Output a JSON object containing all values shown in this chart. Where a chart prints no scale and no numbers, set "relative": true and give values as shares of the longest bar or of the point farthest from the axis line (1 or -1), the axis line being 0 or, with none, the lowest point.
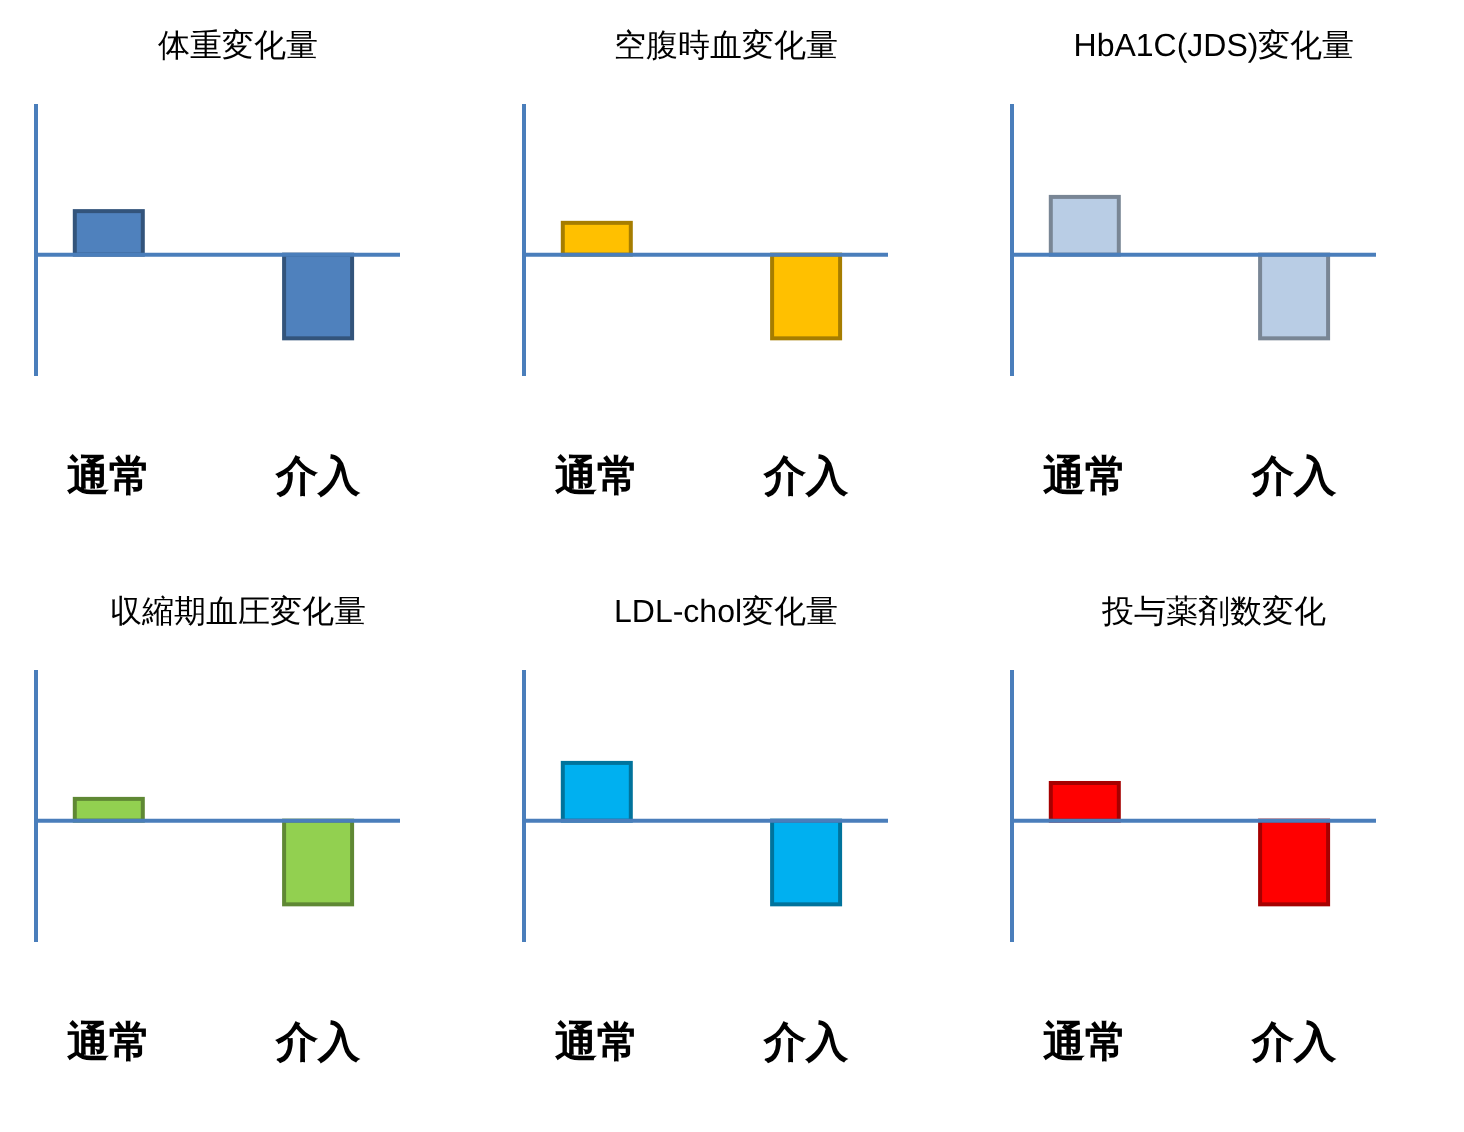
{
  "chart_data": [
    {
      "type": "bar",
      "title": "体重変化量",
      "categories": [
        "通常",
        "介入"
      ],
      "values": [
        0.52,
        -1
      ],
      "color": "#4f81bd",
      "relative": true,
      "ref_lines": [
        {
          "axis": "y",
          "value": 0,
          "color": "#4a7ebb"
        }
      ]
    },
    {
      "type": "bar",
      "title": "空腹時血変化量",
      "categories": [
        "通常",
        "介入"
      ],
      "values": [
        0.38,
        -1
      ],
      "color": "#ffc000",
      "relative": true,
      "ref_lines": [
        {
          "axis": "y",
          "value": 0,
          "color": "#4a7ebb"
        }
      ]
    },
    {
      "type": "bar",
      "title": "HbA1C(JDS)変化量",
      "categories": [
        "通常",
        "介入"
      ],
      "values": [
        0.69,
        -1
      ],
      "color": "#b9cde5",
      "relative": true,
      "ref_lines": [
        {
          "axis": "y",
          "value": 0,
          "color": "#4a7ebb"
        }
      ]
    },
    {
      "type": "bar",
      "title": "収縮期血圧変化量",
      "categories": [
        "通常",
        "介入"
      ],
      "values": [
        0.26,
        -1
      ],
      "color": "#92d050",
      "relative": true,
      "ref_lines": [
        {
          "axis": "y",
          "value": 0,
          "color": "#4a7ebb"
        }
      ]
    },
    {
      "type": "bar",
      "title": "LDL-chol変化量",
      "categories": [
        "通常",
        "介入"
      ],
      "values": [
        0.69,
        -1
      ],
      "color": "#00b0f0",
      "relative": true,
      "ref_lines": [
        {
          "axis": "y",
          "value": 0,
          "color": "#4a7ebb"
        }
      ]
    },
    {
      "type": "bar",
      "title": "投与薬剤数変化",
      "categories": [
        "通常",
        "介入"
      ],
      "values": [
        0.45,
        -1
      ],
      "color": "#ff0000",
      "relative": true,
      "ref_lines": [
        {
          "axis": "y",
          "value": 0,
          "color": "#4a7ebb"
        }
      ]
    }
  ]
}
